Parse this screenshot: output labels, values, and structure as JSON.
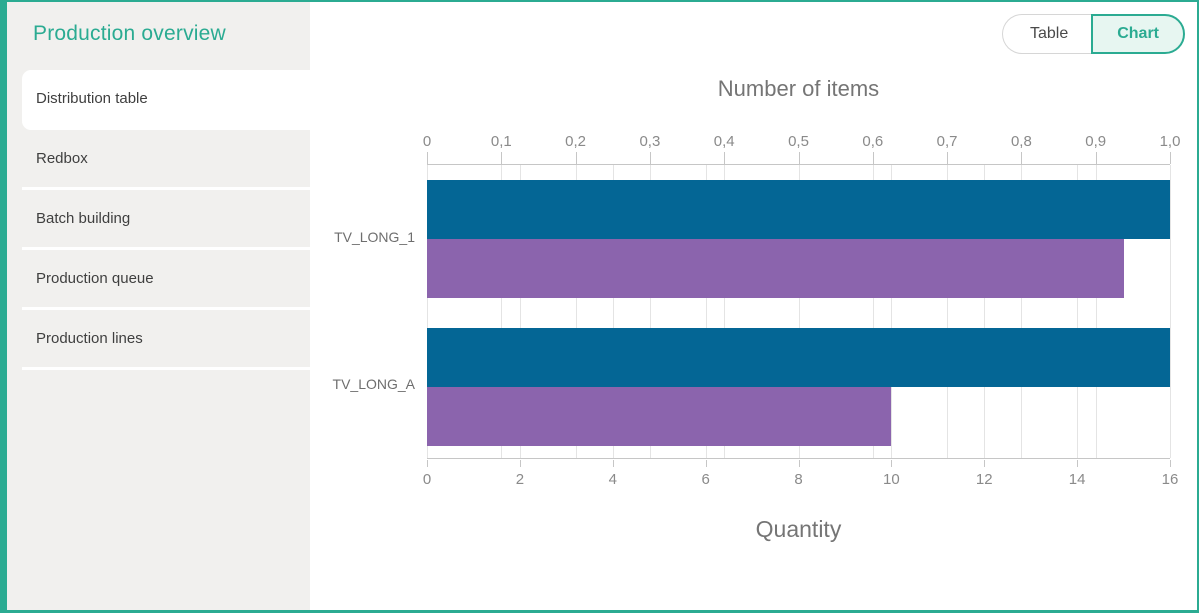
{
  "theme": {
    "accent": "#2bab92",
    "sidebar_bg": "#f1f0ee",
    "chart_button_bg": "#e7f6f1"
  },
  "sidebar": {
    "title": "Production overview",
    "items": [
      {
        "label": "Distribution table",
        "selected": true
      },
      {
        "label": "Redbox",
        "selected": false
      },
      {
        "label": "Batch building",
        "selected": false
      },
      {
        "label": "Production queue",
        "selected": false
      },
      {
        "label": "Production lines",
        "selected": false
      }
    ]
  },
  "view_toggle": {
    "table_label": "Table",
    "chart_label": "Chart",
    "active": "Chart"
  },
  "chart_data": {
    "type": "bar",
    "orientation": "horizontal",
    "title": "Number of items",
    "bottom_axis_title": "Quantity",
    "categories": [
      "TV_LONG_1",
      "TV_LONG_A"
    ],
    "series": [
      {
        "name": "Number of items",
        "axis": "top",
        "color": "#046695",
        "values": [
          1.0,
          1.0
        ]
      },
      {
        "name": "Quantity",
        "axis": "bottom",
        "color": "#8b64ad",
        "values": [
          15,
          10
        ]
      }
    ],
    "top_axis": {
      "min": 0,
      "max": 1,
      "tick_values": [
        0,
        0.1,
        0.2,
        0.3,
        0.4,
        0.5,
        0.6,
        0.7,
        0.8,
        0.9,
        1.0
      ],
      "tick_labels": [
        "0",
        "0,1",
        "0,2",
        "0,3",
        "0,4",
        "0,5",
        "0,6",
        "0,7",
        "0,8",
        "0,9",
        "1,0"
      ]
    },
    "bottom_axis": {
      "min": 0,
      "max": 16,
      "tick_values": [
        0,
        2,
        4,
        6,
        8,
        10,
        12,
        14,
        16
      ],
      "tick_labels": [
        "0",
        "2",
        "4",
        "6",
        "8",
        "10",
        "12",
        "14",
        "16"
      ]
    },
    "grid": true,
    "legend": "none"
  }
}
